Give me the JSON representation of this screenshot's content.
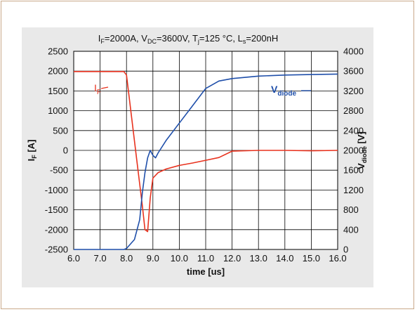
{
  "chart_data": {
    "type": "line",
    "title_parts": {
      "i_main": "I",
      "i_sub": "F",
      "i_val": "=2000A, ",
      "v_main": "V",
      "v_sub": "DC",
      "v_val": "=3600V, ",
      "t_main": "T",
      "t_sub": "j",
      "t_val": "=125 °C, ",
      "l_main": "L",
      "l_sub": "s",
      "l_val": "=200nH"
    },
    "xlabel": "time [us]",
    "ylabel_left": {
      "main": "I",
      "sub": "F",
      "rest": " [A]"
    },
    "ylabel_right": {
      "main": "V",
      "sub": "diode",
      "rest": " [V]"
    },
    "xlim": [
      6.0,
      16.0
    ],
    "ylim_left": [
      -2500,
      2500
    ],
    "ylim_right": [
      0,
      4000
    ],
    "x_ticks": [
      "6.0",
      "7.0",
      "8.0",
      "9.0",
      "10.0",
      "11.0",
      "12.0",
      "13.0",
      "14.0",
      "15.0",
      "16.0"
    ],
    "y_left_ticks": [
      "2500",
      "2000",
      "1500",
      "1000",
      "500",
      "0",
      "-500",
      "-1000",
      "-1500",
      "-2000",
      "-2500"
    ],
    "y_right_ticks": [
      "4000",
      "3600",
      "3200",
      "2800",
      "2400",
      "2000",
      "1600",
      "1200",
      "800",
      "400",
      "0"
    ],
    "grid": true,
    "series": [
      {
        "name_main": "I",
        "name_sub": "F",
        "axis": "left",
        "color": "#e8321e",
        "x": [
          6.0,
          7.0,
          7.9,
          8.0,
          8.2,
          8.4,
          8.6,
          8.7,
          8.8,
          8.9,
          9.0,
          9.2,
          9.5,
          10.0,
          10.5,
          11.0,
          11.5,
          12.0,
          13.0,
          14.0,
          15.0,
          16.0
        ],
        "y": [
          1990,
          1990,
          1990,
          1900,
          800,
          -300,
          -1400,
          -2000,
          -2050,
          -1200,
          -700,
          -560,
          -470,
          -380,
          -320,
          -250,
          -180,
          -20,
          0,
          0,
          -10,
          0
        ]
      },
      {
        "name_main": "V",
        "name_sub": "diode",
        "axis": "right",
        "color": "#1f4faa",
        "x": [
          6.0,
          7.0,
          7.9,
          8.0,
          8.3,
          8.5,
          8.6,
          8.7,
          8.8,
          8.9,
          9.0,
          9.1,
          9.2,
          9.5,
          10.0,
          10.5,
          11.0,
          11.5,
          12.0,
          13.0,
          14.0,
          15.0,
          16.0
        ],
        "y": [
          0,
          0,
          0,
          20,
          200,
          600,
          1150,
          1550,
          1850,
          2000,
          1900,
          1850,
          1950,
          2200,
          2550,
          2900,
          3250,
          3400,
          3450,
          3500,
          3520,
          3530,
          3540
        ]
      }
    ],
    "legend_placement": "inline labels near curves"
  }
}
